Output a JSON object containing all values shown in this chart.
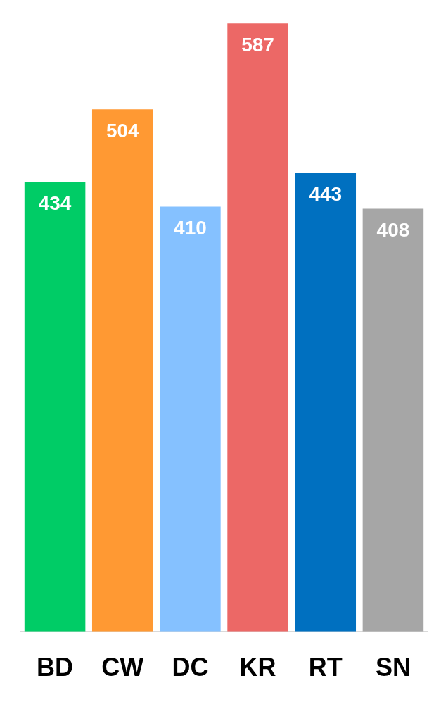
{
  "chart_data": {
    "type": "bar",
    "categories": [
      "BD",
      "CW",
      "DC",
      "KR",
      "RT",
      "SN"
    ],
    "values": [
      434,
      504,
      410,
      587,
      443,
      408
    ],
    "colors": [
      "#00cc66",
      "#ff9933",
      "#85c1ff",
      "#ec6866",
      "#0070c0",
      "#a6a6a6"
    ],
    "data_labels": true,
    "grid": false,
    "legend": false
  }
}
